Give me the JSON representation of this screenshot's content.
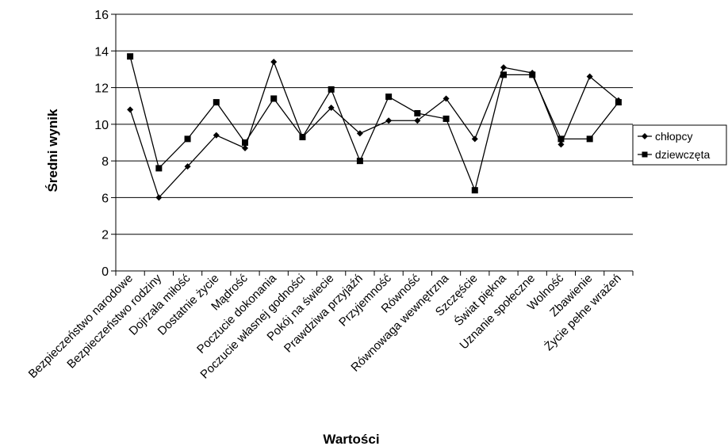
{
  "chart_data": {
    "type": "line",
    "title": "",
    "xlabel": "Wartości",
    "ylabel": "Średni wynik",
    "y_ticks": [
      "0",
      "2",
      "6",
      "8",
      "10",
      "12",
      "14",
      "16"
    ],
    "grid": true,
    "legend_position": "right",
    "categories": [
      "Bezpieczeństwo narodowe",
      "Bezpieczeństwo rodziny",
      "Dojrzała miłość",
      "Dostatnie życie",
      "Mądrość",
      "Poczucie dokonania",
      "Poczucie własnej godności",
      "Pokój na świecie",
      "Prawdziwa przyjaźń",
      "Przyjemność",
      "Równość",
      "Równowaga wewnętrzna",
      "Szczęście",
      "Świat piękna",
      "Uznanie społeczne",
      "Wolność",
      "Zbawienie",
      "Życie pełne wrażeń"
    ],
    "series": [
      {
        "name": "chłopcy",
        "marker": "diamond",
        "color": "#000000",
        "values": [
          10.8,
          6,
          7.7,
          9.4,
          8.7,
          13.4,
          9.3,
          10.9,
          9.5,
          10.2,
          10.2,
          11.4,
          9.2,
          13.1,
          12.8,
          8.9,
          12.6,
          11.3
        ]
      },
      {
        "name": "dziewczęta",
        "marker": "square",
        "color": "#000000",
        "values": [
          13.7,
          7.6,
          9.2,
          11.2,
          9,
          11.4,
          9.3,
          11.9,
          8,
          11.5,
          10.6,
          10.3,
          6.4,
          12.7,
          12.7,
          9.2,
          9.2,
          11.2
        ]
      }
    ]
  }
}
